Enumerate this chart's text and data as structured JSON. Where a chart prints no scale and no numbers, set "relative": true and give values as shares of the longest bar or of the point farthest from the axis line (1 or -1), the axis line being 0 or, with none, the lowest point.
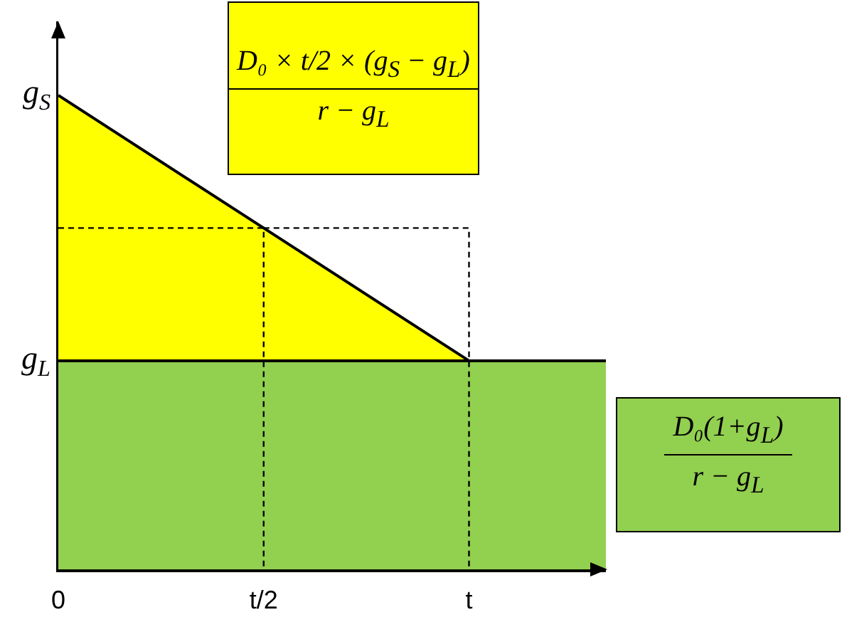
{
  "chart_data": {
    "type": "area",
    "relative": true,
    "categories": [
      "0",
      null,
      null,
      "t/2",
      null,
      null,
      "t",
      null,
      null
    ],
    "series": [
      {
        "color": "#ffff00",
        "x": [
          "0",
          "t/2",
          "t"
        ],
        "values": [
          1,
          0.72,
          0.44
        ]
      },
      {
        "color": "#92d050",
        "values": [
          0.44,
          0.44,
          0.44,
          0.44,
          0.44,
          0.44,
          0.44,
          0.44,
          0.44
        ]
      },
      {
        "type": "line",
        "color": "#000000",
        "line_style": "dashed",
        "x": [
          "0",
          "t/2",
          "t/2",
          "t/2",
          "t/2",
          "t",
          "t"
        ],
        "values": [
          0.72,
          0.72,
          0,
          null,
          0.72,
          0.72,
          0
        ]
      }
    ],
    "annotations": [
      {
        "text": "g$_{S}$",
        "x": "0",
        "y": 1
      },
      {
        "text": "g$_{L}$",
        "x": "0",
        "y": 0.44
      },
      "D₀ × t/2 × (g$_{S}$ − g$_{L}$)\nr − g$_{L}$",
      "D₀(1+g$_{L}$)\nr − g$_{L}$"
    ]
  }
}
